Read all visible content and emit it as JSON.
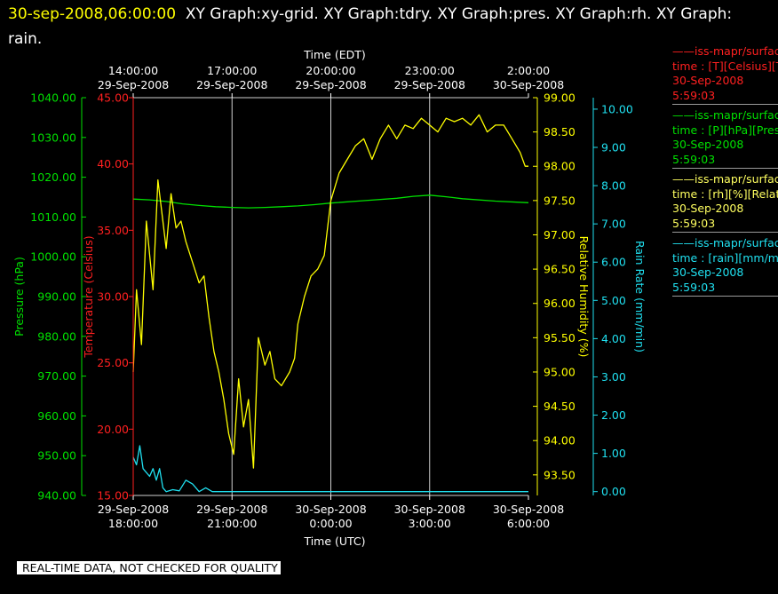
{
  "title": {
    "timestamp": "30-sep-2008,06:00:00",
    "text_line1": "XY Graph:xy-grid.  XY Graph:tdry.  XY Graph:pres.  XY Graph:rh.  XY Graph:",
    "text_line2": "rain."
  },
  "footer_text": "REAL-TIME DATA, NOT CHECKED FOR QUALITY",
  "legend": [
    {
      "line1": "——iss-mapr/surface",
      "line2": "time : [T][Celsius][T",
      "line3": "30-Sep-2008",
      "line4": "5:59:03",
      "color": "#ff2020"
    },
    {
      "line1": "——iss-mapr/surface",
      "line2": "time : [P][hPa][Pres",
      "line3": "30-Sep-2008",
      "line4": "5:59:03",
      "color": "#00e000"
    },
    {
      "line1": "——iss-mapr/surface",
      "line2": "time : [rh][%][Relati",
      "line3": "30-Sep-2008",
      "line4": "5:59:03",
      "color": "#ffff60"
    },
    {
      "line1": "——iss-mapr/surface",
      "line2": "time : [rain][mm/min",
      "line3": "30-Sep-2008",
      "line4": "5:59:03",
      "color": "#20e0f0"
    }
  ],
  "chart_data": {
    "type": "line",
    "top_axis": {
      "label": "Time (EDT)",
      "ticks": [
        {
          "time": "14:00:00",
          "date": "29-Sep-2008"
        },
        {
          "time": "17:00:00",
          "date": "29-Sep-2008"
        },
        {
          "time": "20:00:00",
          "date": "29-Sep-2008"
        },
        {
          "time": "23:00:00",
          "date": "29-Sep-2008"
        },
        {
          "time": "2:00:00",
          "date": "30-Sep-2008"
        }
      ]
    },
    "bottom_axis": {
      "label": "Time (UTC)",
      "ticks": [
        {
          "date": "29-Sep-2008",
          "time": "18:00:00"
        },
        {
          "date": "29-Sep-2008",
          "time": "21:00:00"
        },
        {
          "date": "30-Sep-2008",
          "time": "0:00:00"
        },
        {
          "date": "30-Sep-2008",
          "time": "3:00:00"
        },
        {
          "date": "30-Sep-2008",
          "time": "6:00:00"
        }
      ]
    },
    "x_range_hours_utc": [
      18,
      30
    ],
    "grid": "vertical lines at each x tick",
    "axes": {
      "pressure": {
        "label": "Pressure (hPa)",
        "color": "#00e000",
        "range": [
          940,
          1040
        ],
        "ticks": [
          "1040.00",
          "1030.00",
          "1020.00",
          "1010.00",
          "1000.00",
          "990.00",
          "980.00",
          "970.00",
          "960.00",
          "950.00",
          "940.00"
        ]
      },
      "temperature": {
        "label": "Temperature (Celsius)",
        "color": "#ff2020",
        "range": [
          15,
          45
        ],
        "ticks": [
          "45.00",
          "40.00",
          "35.00",
          "30.00",
          "25.00",
          "20.00",
          "15.00"
        ]
      },
      "humidity": {
        "label": "Relative Humidity (%)",
        "color": "#ffff00",
        "range": [
          93.2,
          99
        ],
        "ticks": [
          "99.00",
          "98.50",
          "98.00",
          "97.50",
          "97.00",
          "96.50",
          "96.00",
          "95.50",
          "95.00",
          "94.50",
          "94.00",
          "93.50"
        ]
      },
      "rain": {
        "label": "Rain Rate (mm/min)",
        "color": "#20e0f0",
        "range": [
          -0.1,
          10.3
        ],
        "ticks": [
          "10.00",
          "9.00",
          "8.00",
          "7.00",
          "6.00",
          "5.00",
          "4.00",
          "3.00",
          "2.00",
          "1.00",
          "0.00"
        ]
      }
    },
    "series": [
      {
        "name": "iss-mapr/surface time : [P][hPa][Pres",
        "axis": "pressure",
        "color": "#00e000",
        "x": [
          18.0,
          18.5,
          19.0,
          19.5,
          20.0,
          20.5,
          21.0,
          21.5,
          22.0,
          22.5,
          23.0,
          23.5,
          24.0,
          25.0,
          26.0,
          26.5,
          27.0,
          27.5,
          28.0,
          29.0,
          30.0
        ],
        "y": [
          1014.5,
          1014.3,
          1013.9,
          1013.3,
          1012.9,
          1012.6,
          1012.4,
          1012.3,
          1012.4,
          1012.6,
          1012.8,
          1013.1,
          1013.5,
          1014.1,
          1014.7,
          1015.2,
          1015.5,
          1015.1,
          1014.6,
          1014.0,
          1013.6
        ]
      },
      {
        "name": "iss-mapr/surface time : [rh][%][Relati",
        "axis": "humidity",
        "color": "#ffff00",
        "x": [
          18.0,
          18.1,
          18.25,
          18.4,
          18.6,
          18.75,
          18.9,
          19.0,
          19.15,
          19.3,
          19.45,
          19.6,
          19.8,
          20.0,
          20.15,
          20.3,
          20.45,
          20.6,
          20.75,
          20.9,
          21.05,
          21.2,
          21.35,
          21.5,
          21.65,
          21.8,
          22.0,
          22.15,
          22.3,
          22.5,
          22.75,
          22.9,
          23.0,
          23.2,
          23.4,
          23.6,
          23.8,
          24.0,
          24.25,
          24.5,
          24.75,
          25.0,
          25.25,
          25.5,
          25.75,
          26.0,
          26.25,
          26.5,
          26.75,
          27.0,
          27.25,
          27.5,
          27.75,
          28.0,
          28.25,
          28.5,
          28.75,
          29.0,
          29.25,
          29.5,
          29.75,
          29.9,
          30.0
        ],
        "y": [
          95.0,
          96.2,
          95.4,
          97.2,
          96.2,
          97.8,
          97.2,
          96.8,
          97.6,
          97.1,
          97.2,
          96.9,
          96.6,
          96.3,
          96.4,
          95.8,
          95.3,
          95.0,
          94.6,
          94.1,
          93.8,
          94.9,
          94.2,
          94.6,
          93.6,
          95.5,
          95.1,
          95.3,
          94.9,
          94.8,
          95.0,
          95.2,
          95.7,
          96.1,
          96.4,
          96.5,
          96.7,
          97.5,
          97.9,
          98.1,
          98.3,
          98.4,
          98.1,
          98.4,
          98.6,
          98.4,
          98.6,
          98.55,
          98.7,
          98.6,
          98.5,
          98.7,
          98.65,
          98.7,
          98.6,
          98.75,
          98.5,
          98.6,
          98.6,
          98.4,
          98.2,
          98.0,
          98.0
        ]
      },
      {
        "name": "iss-mapr/surface time : [rain][mm/min",
        "axis": "rain",
        "color": "#20e0f0",
        "x": [
          18.0,
          18.1,
          18.2,
          18.3,
          18.4,
          18.5,
          18.6,
          18.7,
          18.8,
          18.9,
          19.0,
          19.2,
          19.4,
          19.6,
          19.8,
          20.0,
          20.2,
          20.4,
          20.6,
          20.8,
          21.0,
          22.0,
          23.0,
          24.0,
          25.0,
          26.0,
          27.0,
          28.0,
          29.0,
          30.0
        ],
        "y": [
          0.9,
          0.7,
          1.2,
          0.6,
          0.5,
          0.4,
          0.6,
          0.3,
          0.6,
          0.1,
          0.0,
          0.05,
          0.02,
          0.3,
          0.2,
          0.0,
          0.1,
          0.0,
          0.0,
          0.0,
          0.0,
          0.0,
          0.0,
          0.0,
          0.0,
          0.0,
          0.0,
          0.0,
          0.0,
          0.0
        ]
      },
      {
        "name": "iss-mapr/surface time : [T][Celsius][T",
        "axis": "temperature",
        "color": "#ff2020",
        "x": [],
        "y": []
      }
    ]
  }
}
